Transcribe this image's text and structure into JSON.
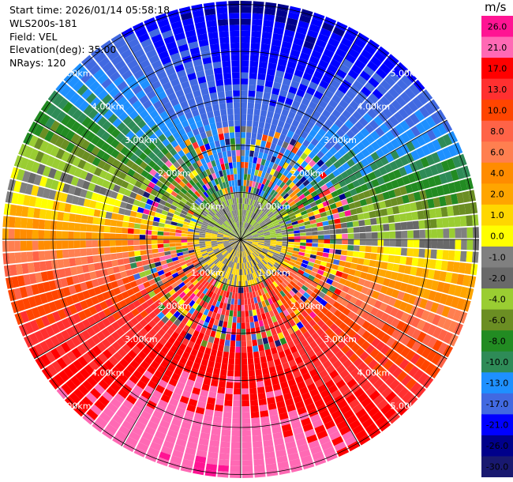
{
  "header": {
    "start_time": "Start time: 2026/01/14 05:58:18",
    "instrument": "WLS200s-181",
    "field": "Field: VEL",
    "elevation": "Elevation(deg): 35.00",
    "nrays": "NRays: 120"
  },
  "chart_data": {
    "type": "heatmap",
    "projection": "polar-ppi",
    "field": "VEL",
    "units": "m/s",
    "elevation_deg": 35.0,
    "n_rays": 120,
    "max_range_km": 5.0,
    "range_rings_km": [
      1.0,
      2.0,
      3.0,
      4.0,
      5.0
    ],
    "range_labels": [
      "1.00km",
      "2.00km",
      "3.00km",
      "4.00km",
      "5.00km"
    ],
    "grid": true,
    "colorbar": {
      "label": "m/s",
      "placement": "right",
      "ticks": [
        "26.0",
        "21.0",
        "17.0",
        "13.0",
        "10.0",
        "8.0",
        "6.0",
        "4.0",
        "2.0",
        "1.0",
        "0.0",
        "-1.0",
        "-2.0",
        "-4.0",
        "-6.0",
        "-8.0",
        "-10.0",
        "-13.0",
        "-17.0",
        "-21.0",
        "-26.0",
        "-30.0"
      ],
      "colors_top_to_bottom": [
        "#ff1493",
        "#ff69b4",
        "#ff0000",
        "#ff3030",
        "#ff4500",
        "#ff6347",
        "#ff7f50",
        "#ff8c00",
        "#ffa500",
        "#ffd700",
        "#ffff00",
        "#808080",
        "#696969",
        "#9acd32",
        "#6b8e23",
        "#228b22",
        "#2e8b57",
        "#1e90ff",
        "#4169e1",
        "#0000ff",
        "#00008b",
        "#191970"
      ]
    }
  }
}
